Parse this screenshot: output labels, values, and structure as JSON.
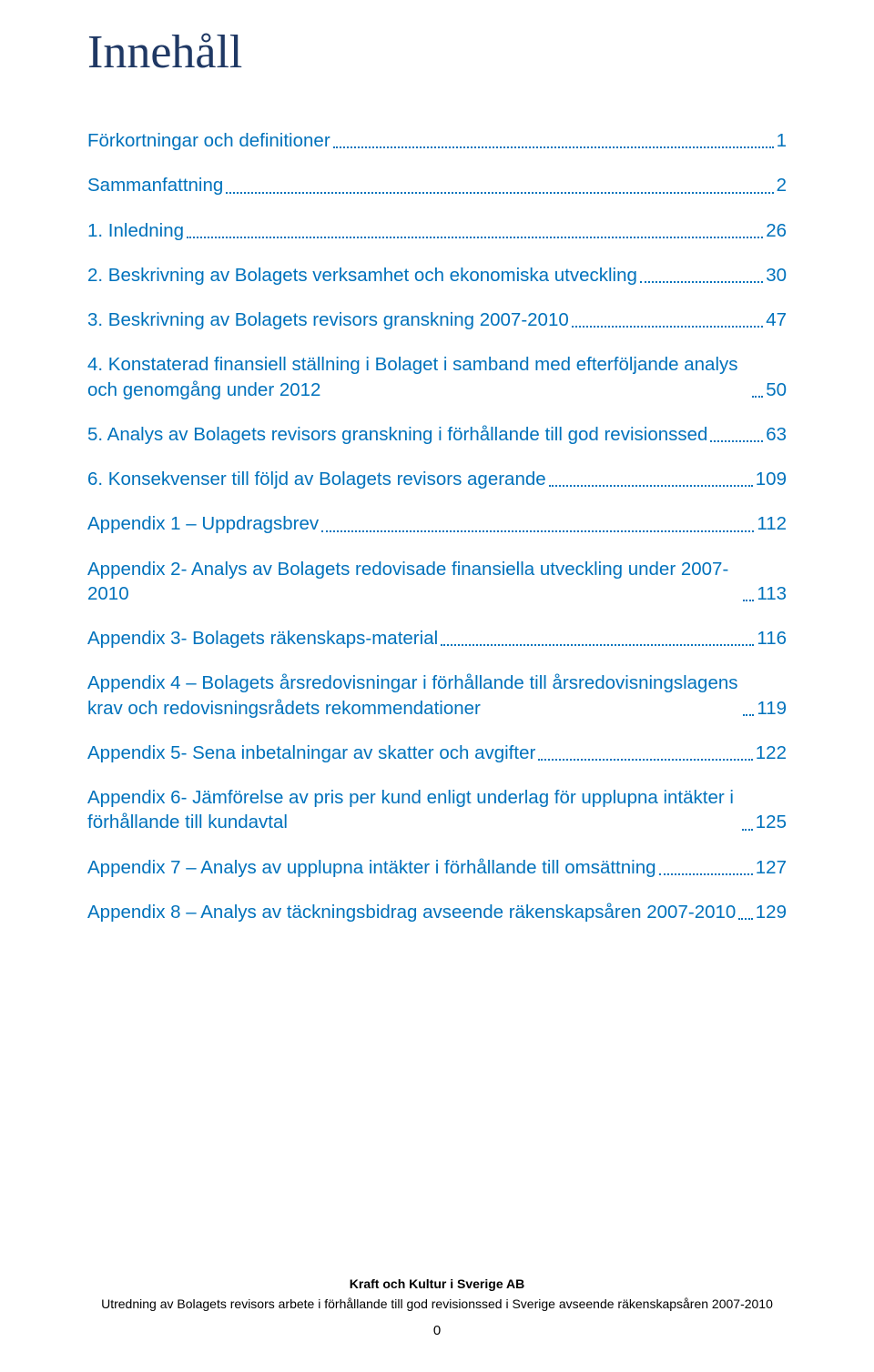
{
  "colors": {
    "title": "#1f3864",
    "link": "#0072bc",
    "leader": "#0072bc",
    "body_text": "#000000",
    "background": "#ffffff"
  },
  "title": "Innehåll",
  "toc": [
    {
      "label": "Förkortningar och definitioner",
      "page": "1",
      "indent": false
    },
    {
      "label": "Sammanfattning",
      "page": "2",
      "indent": false
    },
    {
      "label": "1.   Inledning",
      "page": "26",
      "indent": false
    },
    {
      "label": "2.   Beskrivning av Bolagets verksamhet och ekonomiska utveckling",
      "page": "30",
      "indent": false
    },
    {
      "label": "3.   Beskrivning av Bolagets revisors granskning 2007-2010",
      "page": "47",
      "indent": false
    },
    {
      "label": "4.   Konstaterad finansiell ställning i Bolaget i samband med efterföljande analys och genomgång under 2012",
      "page": "50",
      "indent": false
    },
    {
      "label": "5.   Analys av Bolagets revisors granskning i förhållande till god revisionssed",
      "page": "63",
      "indent": false
    },
    {
      "label": "6.   Konsekvenser till följd av Bolagets revisors agerande",
      "page": "109",
      "indent": false
    },
    {
      "label": "Appendix 1 – Uppdragsbrev",
      "page": "112",
      "indent": false
    },
    {
      "label": "Appendix 2- Analys av Bolagets redovisade finansiella utveckling under 2007-2010",
      "page": "113",
      "indent": false,
      "wrap_indent": true
    },
    {
      "label": "Appendix 3- Bolagets räkenskaps-material",
      "page": "116",
      "indent": false
    },
    {
      "label": "Appendix 4 – Bolagets årsredovisningar i förhållande till årsredovisningslagens krav och redovisningsrådets rekommendationer",
      "page": "119",
      "indent": false
    },
    {
      "label": "Appendix 5- Sena inbetalningar av skatter och avgifter",
      "page": "122",
      "indent": false
    },
    {
      "label": "Appendix 6- Jämförelse av pris per kund enligt underlag för upplupna intäkter i förhållande till kundavtal",
      "page": "125",
      "indent": false
    },
    {
      "label": "Appendix 7 – Analys av upplupna intäkter i förhållande till omsättning",
      "page": "127",
      "indent": false
    },
    {
      "label": "Appendix 8 – Analys av täckningsbidrag avseende räkenskapsåren 2007-2010",
      "page": "129",
      "indent": false
    }
  ],
  "footer": {
    "line1": "Kraft och Kultur i Sverige AB",
    "line2": "Utredning av Bolagets revisors arbete i förhållande till god revisionssed i Sverige avseende räkenskapsåren 2007-2010",
    "pagenum": "0"
  }
}
